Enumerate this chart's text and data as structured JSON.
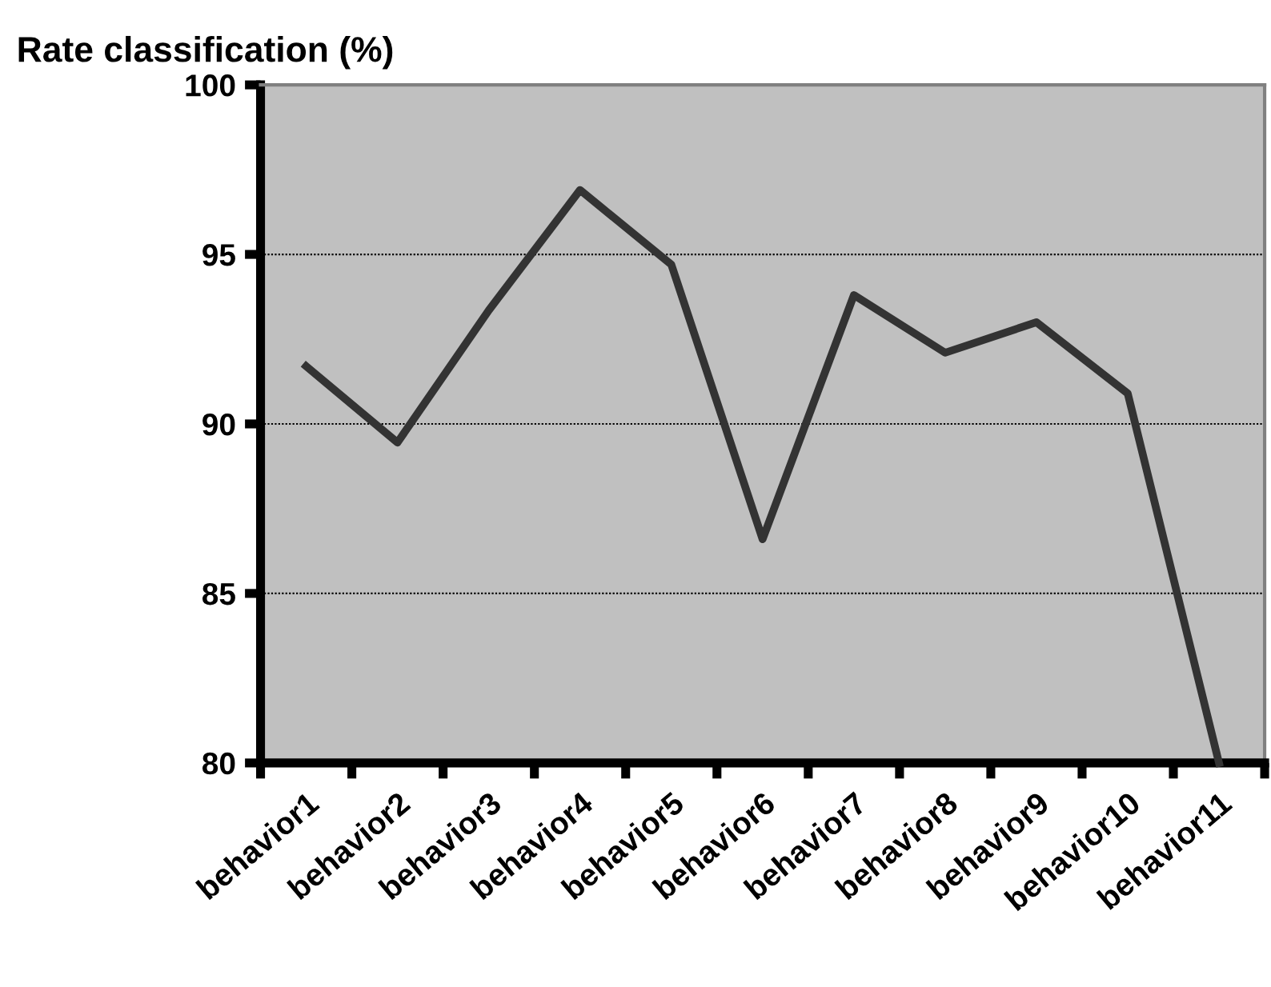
{
  "chart_data": {
    "type": "line",
    "title": "Rate classification (%)",
    "categories": [
      "behavior1",
      "behavior2",
      "behavior3",
      "behavior4",
      "behavior5",
      "behavior6",
      "behavior7",
      "behavior8",
      "behavior9",
      "behavior10",
      "behavior11"
    ],
    "series": [
      {
        "color": "#333333",
        "values": [
          91.7,
          89.45,
          93.35,
          96.9,
          94.7,
          86.6,
          93.8,
          92.1,
          93.0,
          90.9,
          80.0
        ]
      }
    ],
    "ylim": [
      80,
      100
    ],
    "yticks": [
      80,
      85,
      90,
      95,
      100
    ],
    "grid": "y",
    "marker": "none",
    "line_style": "solid",
    "legend": false
  }
}
